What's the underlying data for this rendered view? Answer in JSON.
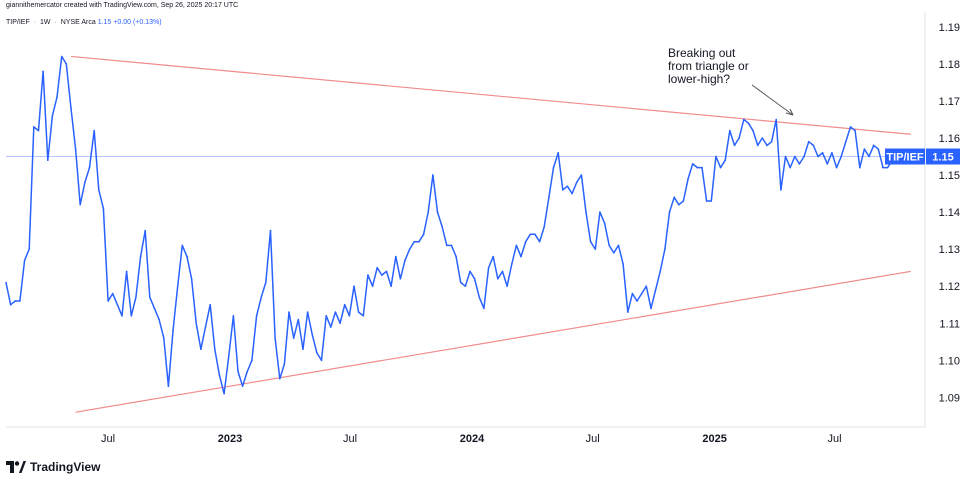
{
  "header": {
    "caption": "giannithemercator created with TradingView.com, Sep 26, 2025 20:17 UTC"
  },
  "legend": {
    "symbol": "TIP/IEF",
    "interval": "1W",
    "exchange": "NYSE Arca",
    "sep": "·",
    "last": "1.15",
    "change": "+0.00 (+0.13%)"
  },
  "price_label": {
    "symbol": "TIP/IEF",
    "value": "1.15"
  },
  "footer": {
    "brand": "TradingView"
  },
  "colors": {
    "series": "#2962ff",
    "trendlines": "#f28b8b",
    "last_price_line": "#b2c7ff",
    "axis_text": "#131722",
    "background": "#ffffff"
  },
  "chart_data": {
    "type": "line",
    "title": "",
    "xlabel": "",
    "ylabel": "",
    "ylim": [
      1.082,
      1.194
    ],
    "x_ticks": [
      "Jul",
      "2023",
      "Jul",
      "2024",
      "Jul",
      "2025",
      "Jul"
    ],
    "y_ticks": [
      "1.09",
      "1.10",
      "1.11",
      "1.12",
      "1.13",
      "1.14",
      "1.15",
      "1.16",
      "1.17",
      "1.18",
      "1.19"
    ],
    "grid": false,
    "x_start": "2022-01-28",
    "series": [
      {
        "values": [
          1.121,
          1.115,
          1.116,
          1.116,
          1.127,
          1.13,
          1.163,
          1.162,
          1.178,
          1.154,
          1.166,
          1.171,
          1.182,
          1.18,
          1.168,
          1.157,
          1.142,
          1.148,
          1.152,
          1.162,
          1.146,
          1.141,
          1.116,
          1.118,
          1.115,
          1.112,
          1.124,
          1.112,
          1.117,
          1.128,
          1.135,
          1.117,
          1.114,
          1.111,
          1.106,
          1.093,
          1.108,
          1.12,
          1.131,
          1.128,
          1.122,
          1.11,
          1.103,
          1.109,
          1.115,
          1.103,
          1.096,
          1.091,
          1.101,
          1.112,
          1.097,
          1.093,
          1.097,
          1.1,
          1.112,
          1.117,
          1.121,
          1.135,
          1.106,
          1.095,
          1.099,
          1.113,
          1.106,
          1.111,
          1.103,
          1.113,
          1.107,
          1.102,
          1.1,
          1.112,
          1.109,
          1.113,
          1.11,
          1.115,
          1.112,
          1.12,
          1.113,
          1.112,
          1.123,
          1.12,
          1.125,
          1.123,
          1.124,
          1.12,
          1.128,
          1.122,
          1.127,
          1.13,
          1.132,
          1.132,
          1.134,
          1.14,
          1.15,
          1.14,
          1.136,
          1.131,
          1.131,
          1.128,
          1.121,
          1.12,
          1.124,
          1.122,
          1.117,
          1.114,
          1.125,
          1.128,
          1.122,
          1.124,
          1.12,
          1.126,
          1.131,
          1.128,
          1.132,
          1.134,
          1.134,
          1.132,
          1.136,
          1.144,
          1.152,
          1.156,
          1.146,
          1.147,
          1.145,
          1.148,
          1.15,
          1.14,
          1.132,
          1.13,
          1.14,
          1.137,
          1.131,
          1.129,
          1.131,
          1.126,
          1.113,
          1.118,
          1.116,
          1.118,
          1.12,
          1.114,
          1.119,
          1.124,
          1.13,
          1.14,
          1.144,
          1.142,
          1.143,
          1.149,
          1.153,
          1.152,
          1.152,
          1.143,
          1.143,
          1.155,
          1.152,
          1.154,
          1.162,
          1.158,
          1.16,
          1.165,
          1.164,
          1.162,
          1.158,
          1.16,
          1.158,
          1.159,
          1.165,
          1.146,
          1.155,
          1.152,
          1.155,
          1.153,
          1.155,
          1.159,
          1.158,
          1.155,
          1.156,
          1.153,
          1.156,
          1.152,
          1.155,
          1.159,
          1.163,
          1.162,
          1.152,
          1.157,
          1.155,
          1.158,
          1.157,
          1.152,
          1.152,
          1.154,
          1.155
        ],
        "last": 1.155
      }
    ],
    "trendlines": [
      {
        "name": "upper",
        "from": {
          "date": "2022-05-06",
          "value": 1.182
        },
        "to": {
          "date": "2025-10-24",
          "value": 1.161
        }
      },
      {
        "name": "lower",
        "from": {
          "date": "2022-05-13",
          "value": 1.086
        },
        "to": {
          "date": "2025-10-24",
          "value": 1.124
        }
      }
    ],
    "annotations": [
      {
        "text": [
          "Breaking out",
          "from triangle or",
          "lower-high?"
        ]
      }
    ]
  }
}
